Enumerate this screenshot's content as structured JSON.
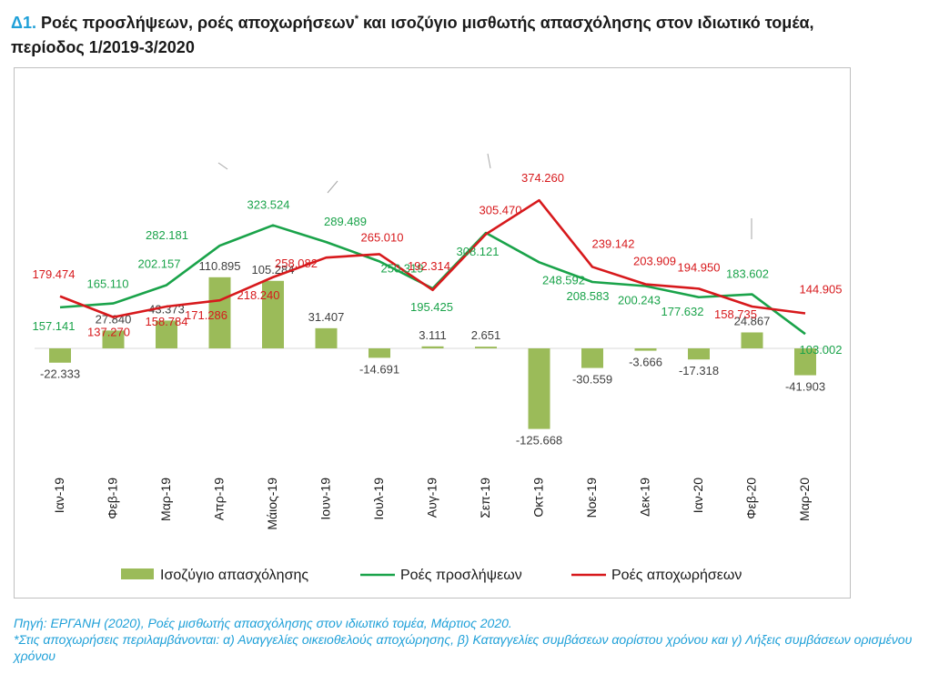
{
  "title": {
    "prefix": "Δ1.",
    "text_before_star": "Ροές προσλήψεων, ροές αποχωρήσεων",
    "star": "*",
    "text_after_star": " και ισοζύγιο μισθωτής απασχόλησης  στον ιδιωτικό τομέα,",
    "line2": "περίοδος 1/2019-3/2020"
  },
  "chart_data": {
    "type": "bar+line",
    "categories": [
      "Ιαν-19",
      "Φεβ-19",
      "Μαρ-19",
      "Απρ-19",
      "Μάιος-19",
      "Ιουν-19",
      "Ιουλ-19",
      "Αυγ-19",
      "Σεπ-19",
      "Οκτ-19",
      "Νοε-19",
      "Δεκ-19",
      "Ιαν-20",
      "Φεβ-20",
      "Μαρ-20"
    ],
    "series": [
      {
        "name": "Ισοζύγιο απασχόλησης",
        "kind": "bar",
        "color": "#9bbb59",
        "values": [
          -22333,
          27840,
          43373,
          110895,
          105284,
          31407,
          -14691,
          3111,
          2651,
          -125668,
          -30559,
          -3666,
          -17318,
          24867,
          -41903
        ],
        "labels": [
          "-22.333",
          "27.840",
          "43.373",
          "110.895",
          "105.284",
          "31.407",
          "-14.691",
          "3.111",
          "2.651",
          "-125.668",
          "-30.559",
          "-3.666",
          "-17.318",
          "24.867",
          "-41.903"
        ]
      },
      {
        "name": "Ροές προσλήψεων",
        "kind": "line",
        "color": "#1aa34a",
        "values": [
          157141,
          165110,
          202157,
          282181,
          323524,
          289489,
          250319,
          195425,
          308121,
          248592,
          208583,
          200243,
          177632,
          183602,
          103002
        ],
        "labels": [
          "157.141",
          "165.110",
          "202.157",
          "282.181",
          "323.524",
          "289.489",
          "250.319",
          "195.425",
          "308.121",
          "248.592",
          "208.583",
          "200.243",
          "177.632",
          "183.602",
          "103.002"
        ]
      },
      {
        "name": "Ροές αποχωρήσεων",
        "kind": "line",
        "color": "#d7191c",
        "values": [
          179474,
          137270,
          158784,
          171286,
          218240,
          258082,
          265010,
          192314,
          305470,
          374260,
          239142,
          203909,
          194950,
          158735,
          144905
        ],
        "labels": [
          "179.474",
          "137.270",
          "158.784",
          "171.286",
          "218.240",
          "258.082",
          "265.010",
          "192.314",
          "305.470",
          "374.260",
          "239.142",
          "203.909",
          "194.950",
          "158.735",
          "144.905"
        ]
      }
    ],
    "legend_position": "bottom",
    "grid": false
  },
  "footer": {
    "source": "Πηγή: ΕΡΓΑΝΗ (2020), Ροές μισθωτής απασχόλησης στον ιδιωτικό τομέα, Μάρτιος 2020.",
    "note": "*Στις αποχωρήσεις περιλαμβάνονται: α) Αναγγελίες οικειοθελούς αποχώρησης, β) Καταγγελίες συμβάσεων αορίστου χρόνου και γ) Λήξεις συμβάσεων ορισμένου χρόνου"
  }
}
